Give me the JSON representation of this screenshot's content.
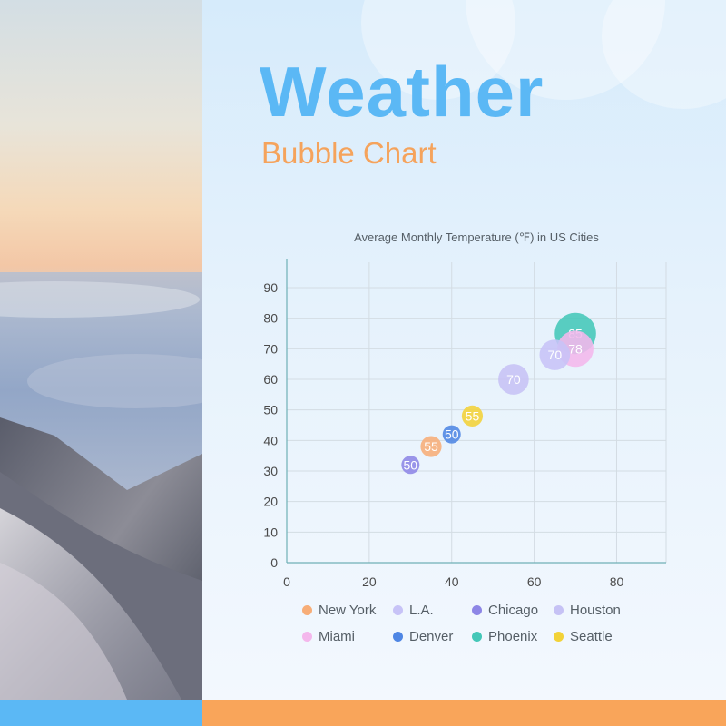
{
  "header": {
    "title": "Weather",
    "subtitle": "Bubble Chart"
  },
  "colors": {
    "title": "#5bb8f5",
    "subtitle": "#f5a35c",
    "bar_left": "#5bb8f5",
    "bar_right": "#f9a55a",
    "grid": "#d3dce3",
    "axis": "#6fb0b6",
    "tick_text": "#4a4a4a"
  },
  "chart_data": {
    "type": "scatter",
    "title": "Average Monthly Temperature (℉) in US Cities",
    "xlabel": "",
    "ylabel": "",
    "xlim": [
      0,
      92
    ],
    "ylim": [
      0,
      90
    ],
    "x_ticks": [
      0,
      20,
      40,
      60,
      80
    ],
    "y_ticks": [
      0,
      10,
      20,
      30,
      40,
      50,
      60,
      70,
      80,
      90
    ],
    "grid": true,
    "legend_position": "bottom",
    "series": [
      {
        "name": "New York",
        "color": "#f7ad78",
        "x": 35,
        "y": 38,
        "size": 55,
        "label": "55"
      },
      {
        "name": "L.A.",
        "color": "#c7c3f7",
        "x": 65,
        "y": 68,
        "size": 70,
        "label": "70"
      },
      {
        "name": "Chicago",
        "color": "#8d86e6",
        "x": 30,
        "y": 32,
        "size": 50,
        "label": "50"
      },
      {
        "name": "Houston",
        "color": "#c6c2f5",
        "x": 55,
        "y": 60,
        "size": 70,
        "label": "70"
      },
      {
        "name": "Miami",
        "color": "#f4b7ec",
        "x": 70,
        "y": 70,
        "size": 78,
        "label": "78"
      },
      {
        "name": "Denver",
        "color": "#4f86e4",
        "x": 40,
        "y": 42,
        "size": 50,
        "label": "50"
      },
      {
        "name": "Phoenix",
        "color": "#44c7b8",
        "x": 70,
        "y": 75,
        "size": 85,
        "label": "85"
      },
      {
        "name": "Seattle",
        "color": "#f2d238",
        "x": 45,
        "y": 48,
        "size": 55,
        "label": "55"
      }
    ]
  }
}
